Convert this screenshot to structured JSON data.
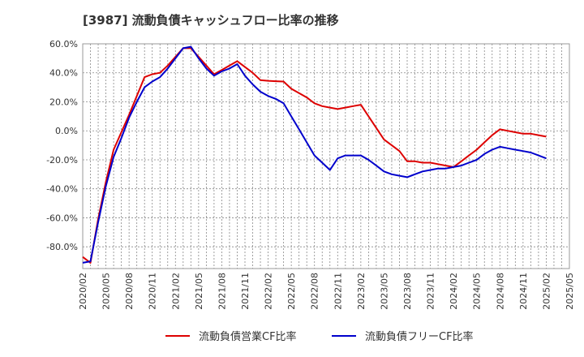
{
  "chart_data": {
    "type": "line",
    "title": "[3987]  流動負債キャッシュフロー比率の推移",
    "xlabel": "",
    "ylabel": "",
    "ylim": [
      -95,
      60
    ],
    "y_ticks": [
      60,
      40,
      20,
      0,
      -20,
      -40,
      -60,
      -80
    ],
    "y_tick_labels": [
      "60.0%",
      "40.0%",
      "20.0%",
      "0.0%",
      "-20.0%",
      "-40.0%",
      "-60.0%",
      "-80.0%"
    ],
    "x_tick_labels": [
      "2020/02",
      "2020/05",
      "2020/08",
      "2020/11",
      "2021/02",
      "2021/05",
      "2021/08",
      "2021/11",
      "2022/02",
      "2022/05",
      "2022/08",
      "2022/11",
      "2023/02",
      "2023/05",
      "2023/08",
      "2023/11",
      "2024/02",
      "2024/05",
      "2024/08",
      "2024/11",
      "2025/02",
      "2025/05"
    ],
    "grid": true,
    "legend_position": "bottom",
    "x": [
      "2020/02",
      "2020/03",
      "2020/04",
      "2020/05",
      "2020/06",
      "2020/07",
      "2020/08",
      "2020/09",
      "2020/10",
      "2020/11",
      "2020/12",
      "2021/01",
      "2021/02",
      "2021/03",
      "2021/04",
      "2021/05",
      "2021/06",
      "2021/07",
      "2021/08",
      "2021/09",
      "2021/10",
      "2021/11",
      "2021/12",
      "2022/01",
      "2022/02",
      "2022/03",
      "2022/04",
      "2022/05",
      "2022/06",
      "2022/07",
      "2022/08",
      "2022/09",
      "2022/10",
      "2022/11",
      "2022/12",
      "2023/01",
      "2023/02",
      "2023/03",
      "2023/04",
      "2023/05",
      "2023/06",
      "2023/07",
      "2023/08",
      "2023/09",
      "2023/10",
      "2023/11",
      "2023/12",
      "2024/01",
      "2024/02",
      "2024/03",
      "2024/04",
      "2024/05",
      "2024/06",
      "2024/07",
      "2024/08",
      "2024/09",
      "2024/10",
      "2024/11",
      "2024/12",
      "2025/01",
      "2025/02"
    ],
    "series": [
      {
        "name": "流動負債営業CF比率",
        "color": "#dd0000",
        "values": [
          -87,
          -91,
          -61,
          -35,
          -13,
          -1,
          11,
          24,
          37,
          39,
          40,
          45,
          51,
          57,
          57,
          51,
          45,
          39,
          42,
          45,
          48,
          44,
          40,
          35,
          34.5,
          34.2,
          34,
          29,
          26,
          23,
          19,
          17,
          16,
          15,
          16,
          17,
          18,
          10,
          2,
          -6,
          -10,
          -14,
          -21,
          -21,
          -22,
          -22,
          -23,
          -24,
          -25,
          -21,
          -17,
          -13,
          -8,
          -3,
          1,
          0,
          -1,
          -2,
          -2,
          -3,
          -4
        ]
      },
      {
        "name": "流動負債フリーCF比率",
        "color": "#0000cc",
        "values": [
          -91,
          -90,
          -63,
          -38,
          -18,
          -5,
          9,
          20,
          30,
          34,
          37,
          43,
          50,
          57,
          58,
          50,
          43,
          38,
          41,
          43,
          46,
          38,
          32,
          27,
          24,
          22,
          19,
          10,
          1,
          -8,
          -17,
          -22,
          -27,
          -19,
          -17,
          -17,
          -17,
          -20,
          -24,
          -28,
          -30,
          -31,
          -32,
          -30,
          -28,
          -27,
          -26,
          -26,
          -25,
          -24,
          -22,
          -20,
          -16,
          -13,
          -11,
          -12,
          -13,
          -14,
          -15,
          -17,
          -19
        ]
      }
    ]
  }
}
